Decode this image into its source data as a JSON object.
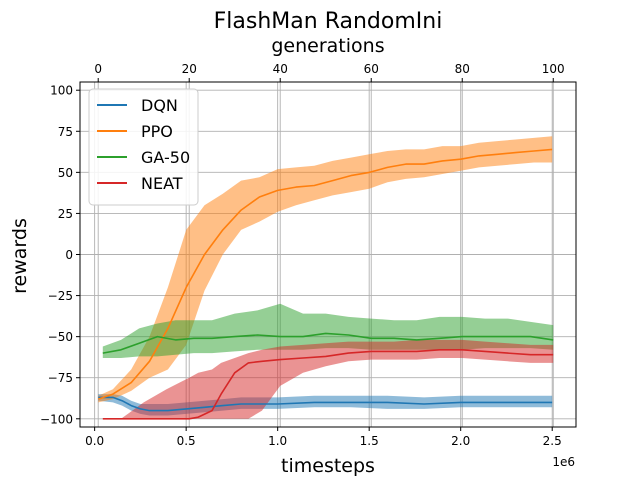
{
  "chart_data": {
    "type": "line",
    "title": "FlashMan RandomIni",
    "xlabel": "timesteps",
    "ylabel": "rewards",
    "top_xlabel": "generations",
    "x_offset_label": "1e6",
    "xlim": [
      -0.08,
      2.63
    ],
    "ylim": [
      -105,
      105
    ],
    "top_xlim": [
      -4,
      105
    ],
    "x_ticks": [
      0.0,
      0.5,
      1.0,
      1.5,
      2.0,
      2.5
    ],
    "x_tick_labels": [
      "0.0",
      "0.5",
      "1.0",
      "1.5",
      "2.0",
      "2.5"
    ],
    "top_ticks": [
      0,
      20,
      40,
      60,
      80,
      100
    ],
    "top_tick_labels": [
      "0",
      "20",
      "40",
      "60",
      "80",
      "100"
    ],
    "y_ticks": [
      -100,
      -75,
      -50,
      -25,
      0,
      25,
      50,
      75,
      100
    ],
    "y_tick_labels": [
      "−100",
      "−75",
      "−50",
      "−25",
      "0",
      "25",
      "50",
      "75",
      "100"
    ],
    "grid": true,
    "legend_position": "top-left",
    "series": [
      {
        "name": "DQN",
        "color": "#1f77b4",
        "axis": "timesteps",
        "x": [
          0.02,
          0.1,
          0.15,
          0.2,
          0.25,
          0.3,
          0.4,
          0.5,
          0.6,
          0.7,
          0.8,
          1.0,
          1.2,
          1.4,
          1.6,
          1.8,
          2.0,
          2.2,
          2.4,
          2.5
        ],
        "y": [
          -87,
          -87,
          -89,
          -92,
          -94,
          -95,
          -95,
          -94,
          -93,
          -92,
          -91,
          -91,
          -90,
          -90,
          -90,
          -91,
          -90,
          -90,
          -90,
          -90
        ],
        "lower": [
          -89,
          -90,
          -92,
          -95,
          -97,
          -98,
          -98,
          -97,
          -96,
          -95,
          -94,
          -94,
          -93,
          -93,
          -94,
          -94,
          -93,
          -93,
          -93,
          -93
        ],
        "upper": [
          -85,
          -85,
          -86,
          -89,
          -91,
          -91,
          -91,
          -90,
          -89,
          -88,
          -87,
          -87,
          -86,
          -86,
          -86,
          -87,
          -86,
          -86,
          -86,
          -86
        ]
      },
      {
        "name": "PPO",
        "color": "#ff7f0e",
        "axis": "timesteps",
        "x": [
          0.02,
          0.1,
          0.2,
          0.3,
          0.4,
          0.5,
          0.6,
          0.7,
          0.8,
          0.9,
          1.0,
          1.1,
          1.2,
          1.3,
          1.4,
          1.5,
          1.6,
          1.7,
          1.8,
          1.9,
          2.0,
          2.1,
          2.2,
          2.3,
          2.4,
          2.5
        ],
        "y": [
          -88,
          -85,
          -78,
          -65,
          -45,
          -20,
          0,
          15,
          27,
          35,
          39,
          41,
          42,
          45,
          48,
          50,
          53,
          55,
          55,
          57,
          58,
          60,
          61,
          62,
          63,
          64
        ],
        "lower": [
          -90,
          -88,
          -83,
          -75,
          -70,
          -55,
          -22,
          0,
          15,
          20,
          26,
          30,
          33,
          36,
          38,
          40,
          44,
          46,
          47,
          49,
          51,
          53,
          54,
          55,
          56,
          56
        ],
        "upper": [
          -86,
          -82,
          -70,
          -50,
          -20,
          15,
          30,
          37,
          45,
          47,
          52,
          53,
          54,
          57,
          59,
          61,
          63,
          64,
          64,
          66,
          66,
          68,
          69,
          70,
          71,
          72
        ]
      },
      {
        "name": "GA-50",
        "color": "#2ca02c",
        "axis": "generations",
        "x": [
          1,
          5,
          9,
          13,
          17,
          21,
          25,
          30,
          35,
          40,
          45,
          50,
          55,
          60,
          65,
          70,
          75,
          80,
          85,
          90,
          95,
          100
        ],
        "y": [
          -60,
          -58,
          -54,
          -50,
          -52,
          -51,
          -51,
          -50,
          -49,
          -50,
          -50,
          -48,
          -49,
          -51,
          -51,
          -52,
          -51,
          -50,
          -50,
          -50,
          -50,
          -52
        ],
        "lower": [
          -63,
          -63,
          -62,
          -62,
          -61,
          -60,
          -60,
          -59,
          -58,
          -58,
          -58,
          -57,
          -57,
          -58,
          -58,
          -58,
          -58,
          -58,
          -57,
          -57,
          -57,
          -58
        ],
        "upper": [
          -56,
          -52,
          -45,
          -42,
          -40,
          -40,
          -40,
          -36,
          -34,
          -30,
          -36,
          -36,
          -38,
          -39,
          -40,
          -40,
          -38,
          -38,
          -39,
          -39,
          -41,
          -43
        ]
      },
      {
        "name": "NEAT",
        "color": "#d62728",
        "axis": "generations",
        "x": [
          1,
          5,
          10,
          15,
          20,
          22,
          25,
          27,
          30,
          33,
          36,
          40,
          45,
          50,
          55,
          60,
          65,
          70,
          75,
          80,
          85,
          90,
          95,
          100
        ],
        "y": [
          -100,
          -100,
          -100,
          -100,
          -100,
          -99,
          -95,
          -85,
          -72,
          -66,
          -65,
          -64,
          -63,
          -62,
          -60,
          -59,
          -59,
          -59,
          -58,
          -58,
          -59,
          -60,
          -61,
          -61
        ],
        "lower": [
          -100,
          -100,
          -100,
          -100,
          -100,
          -100,
          -100,
          -100,
          -100,
          -100,
          -95,
          -80,
          -72,
          -68,
          -65,
          -64,
          -64,
          -64,
          -63,
          -63,
          -64,
          -65,
          -66,
          -66
        ],
        "upper": [
          -100,
          -100,
          -90,
          -82,
          -75,
          -72,
          -70,
          -66,
          -63,
          -60,
          -58,
          -56,
          -55,
          -54,
          -53,
          -53,
          -53,
          -52,
          -52,
          -52,
          -53,
          -54,
          -55,
          -55
        ]
      }
    ]
  }
}
